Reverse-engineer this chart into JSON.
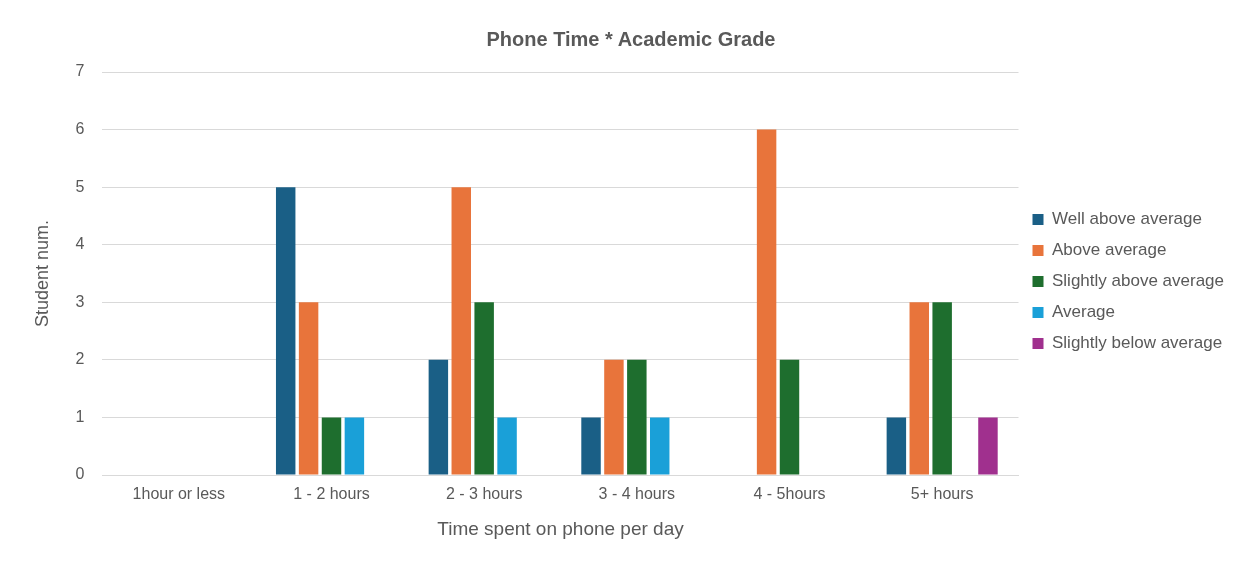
{
  "chart_data": {
    "type": "bar",
    "title": "Phone Time * Academic Grade",
    "xlabel": "Time spent on phone per day",
    "ylabel": "Student num.",
    "categories": [
      "1hour or less",
      "1 - 2 hours",
      "2 - 3 hours",
      "3 - 4 hours",
      "4 - 5hours",
      "5+ hours"
    ],
    "series": [
      {
        "name": "Well above average",
        "color": "#1a5f86",
        "values": [
          0,
          5,
          2,
          1,
          0,
          1
        ]
      },
      {
        "name": "Above average",
        "color": "#e8743b",
        "values": [
          0,
          3,
          5,
          2,
          6,
          3
        ]
      },
      {
        "name": "Slightly above average",
        "color": "#1e6e2e",
        "values": [
          0,
          1,
          3,
          2,
          2,
          3
        ]
      },
      {
        "name": "Average",
        "color": "#1aa0d8",
        "values": [
          0,
          1,
          1,
          1,
          0,
          0
        ]
      },
      {
        "name": "Slightly below average",
        "color": "#a0308e",
        "values": [
          0,
          0,
          0,
          0,
          0,
          1
        ]
      }
    ],
    "ylim": [
      0,
      7
    ],
    "yticks": [
      0,
      1,
      2,
      3,
      4,
      5,
      6,
      7
    ],
    "grid": "y",
    "legend": "right"
  }
}
